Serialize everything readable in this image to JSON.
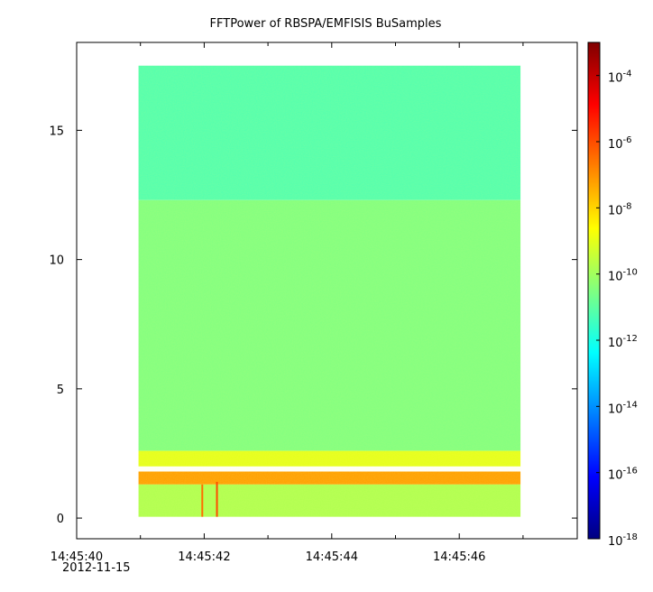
{
  "chart_data": {
    "type": "heatmap",
    "title": "FFTPower of RBSPA/EMFISIS  BuSamples",
    "xlabel": "",
    "ylabel": "",
    "x_date": "2012-11-15",
    "x_ticks": [
      {
        "label": "14:45:40",
        "t": 0
      },
      {
        "label": "14:45:42",
        "t": 2
      },
      {
        "label": "14:45:44",
        "t": 4
      },
      {
        "label": "14:45:46",
        "t": 6
      }
    ],
    "x_minor_ticks": [
      1,
      3,
      5,
      7
    ],
    "xlim_seconds": [
      0,
      7.85
    ],
    "data_x_range_seconds": [
      0.97,
      6.96
    ],
    "ylim": [
      -0.8,
      18.4
    ],
    "data_y_range": [
      0.05,
      17.5
    ],
    "y_ticks": [
      {
        "label": "0",
        "v": 0
      },
      {
        "label": "5",
        "v": 5
      },
      {
        "label": "10",
        "v": 10
      },
      {
        "label": "15",
        "v": 15
      }
    ],
    "colorbar": {
      "scale": "log",
      "range": [
        1e-18,
        0.001
      ],
      "ticks": [
        {
          "base": "10",
          "exp": "-4",
          "v": -4
        },
        {
          "base": "10",
          "exp": "-6",
          "v": -6
        },
        {
          "base": "10",
          "exp": "-8",
          "v": -8
        },
        {
          "base": "10",
          "exp": "-10",
          "v": -10
        },
        {
          "base": "10",
          "exp": "-12",
          "v": -12
        },
        {
          "base": "10",
          "exp": "-14",
          "v": -14
        },
        {
          "base": "10",
          "exp": "-16",
          "v": -16
        },
        {
          "base": "10",
          "exp": "-18",
          "v": -18
        }
      ]
    },
    "bands": [
      {
        "y_from": 12.3,
        "y_to": 17.5,
        "log_power": -11.2
      },
      {
        "y_from": 2.6,
        "y_to": 12.3,
        "log_power": -10.5
      },
      {
        "y_from": 2.0,
        "y_to": 2.6,
        "log_power": -9.0
      },
      {
        "y_from": 1.3,
        "y_to": 1.8,
        "log_power": -7.2
      },
      {
        "y_from": 0.05,
        "y_to": 1.3,
        "log_power": -9.8
      }
    ],
    "spikes": [
      {
        "t": 1.97,
        "y_to": 1.3,
        "log_power": -6.5
      },
      {
        "t": 2.2,
        "y_to": 1.4,
        "log_power": -6.0
      }
    ]
  }
}
